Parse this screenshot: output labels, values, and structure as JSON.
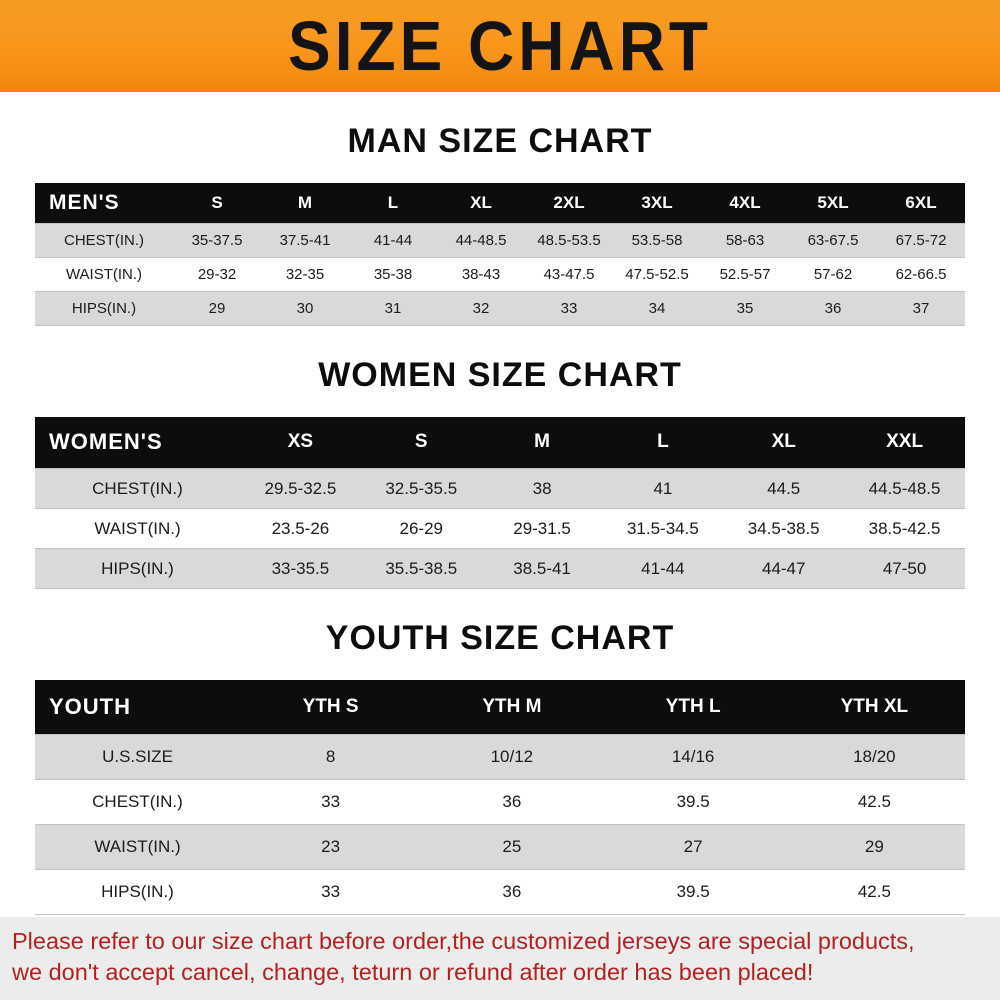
{
  "banner": {
    "title": "SIZE CHART",
    "bg_color": "#f7941d",
    "text_color": "#141414"
  },
  "chart_data": [
    {
      "type": "table",
      "title": "MAN SIZE CHART",
      "header": [
        "MEN'S",
        "S",
        "M",
        "L",
        "XL",
        "2XL",
        "3XL",
        "4XL",
        "5XL",
        "6XL"
      ],
      "rows": [
        [
          "CHEST(IN.)",
          "35-37.5",
          "37.5-41",
          "41-44",
          "44-48.5",
          "48.5-53.5",
          "53.5-58",
          "58-63",
          "63-67.5",
          "67.5-72"
        ],
        [
          "WAIST(IN.)",
          "29-32",
          "32-35",
          "35-38",
          "38-43",
          "43-47.5",
          "47.5-52.5",
          "52.5-57",
          "57-62",
          "62-66.5"
        ],
        [
          "HIPS(IN.)",
          "29",
          "30",
          "31",
          "32",
          "33",
          "34",
          "35",
          "36",
          "37"
        ]
      ]
    },
    {
      "type": "table",
      "title": "WOMEN SIZE CHART",
      "header": [
        "WOMEN'S",
        "XS",
        "S",
        "M",
        "L",
        "XL",
        "XXL"
      ],
      "rows": [
        [
          "CHEST(IN.)",
          "29.5-32.5",
          "32.5-35.5",
          "38",
          "41",
          "44.5",
          "44.5-48.5"
        ],
        [
          "WAIST(IN.)",
          "23.5-26",
          "26-29",
          "29-31.5",
          "31.5-34.5",
          "34.5-38.5",
          "38.5-42.5"
        ],
        [
          "HIPS(IN.)",
          "33-35.5",
          "35.5-38.5",
          "38.5-41",
          "41-44",
          "44-47",
          "47-50"
        ]
      ]
    },
    {
      "type": "table",
      "title": "YOUTH SIZE CHART",
      "header": [
        "YOUTH",
        "YTH S",
        "YTH M",
        "YTH L",
        "YTH XL"
      ],
      "rows": [
        [
          "U.S.SIZE",
          "8",
          "10/12",
          "14/16",
          "18/20"
        ],
        [
          "CHEST(IN.)",
          "33",
          "36",
          "39.5",
          "42.5"
        ],
        [
          "WAIST(IN.)",
          "23",
          "25",
          "27",
          "29"
        ],
        [
          "HIPS(IN.)",
          "33",
          "36",
          "39.5",
          "42.5"
        ]
      ]
    }
  ],
  "footer_note": {
    "line1": "Please refer to our size chart before order,the customized jerseys are special products,",
    "line2": "we don't accept cancel, change, teturn or refund after order has been placed!",
    "text_color": "#b22222",
    "bg_color": "#ececec"
  }
}
